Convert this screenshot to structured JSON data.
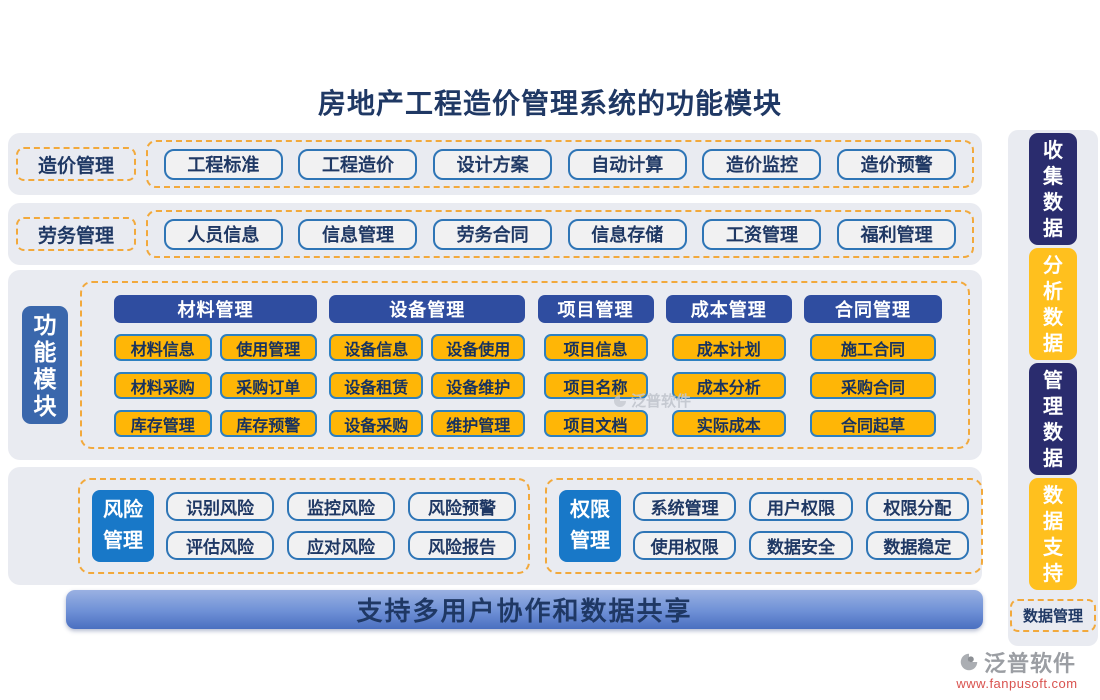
{
  "title": "房地产工程造价管理系统的功能模块",
  "rows": [
    {
      "label": "造价管理",
      "buttons": [
        "工程标准",
        "工程造价",
        "设计方案",
        "自动计算",
        "造价监控",
        "造价预警"
      ]
    },
    {
      "label": "劳务管理",
      "buttons": [
        "人员信息",
        "信息管理",
        "劳务合同",
        "信息存储",
        "工资管理",
        "福利管理"
      ]
    }
  ],
  "function_modules": {
    "label": "功能模块",
    "columns": [
      {
        "header": "材料管理",
        "layout": "two-col",
        "buttons": [
          "材料信息",
          "使用管理",
          "材料采购",
          "采购订单",
          "库存管理",
          "库存预警"
        ]
      },
      {
        "header": "设备管理",
        "layout": "two-col",
        "buttons": [
          "设备信息",
          "设备使用",
          "设备租赁",
          "设备维护",
          "设备采购",
          "维护管理"
        ]
      },
      {
        "header": "项目管理",
        "layout": "one-col",
        "buttons": [
          "项目信息",
          "项目名称",
          "项目文档"
        ]
      },
      {
        "header": "成本管理",
        "layout": "one-col",
        "buttons": [
          "成本计划",
          "成本分析",
          "实际成本"
        ]
      },
      {
        "header": "合同管理",
        "layout": "one-col",
        "buttons": [
          "施工合同",
          "采购合同",
          "合同起草"
        ]
      }
    ]
  },
  "bottom_groups": [
    {
      "label": "风险管理",
      "buttons": [
        "识别风险",
        "监控风险",
        "风险预警",
        "评估风险",
        "应对风险",
        "风险报告"
      ]
    },
    {
      "label": "权限管理",
      "buttons": [
        "系统管理",
        "用户权限",
        "权限分配",
        "使用权限",
        "数据安全",
        "数据稳定"
      ]
    }
  ],
  "banner": {
    "text": "支持多用户协作和数据共享"
  },
  "sidebar": {
    "items": [
      {
        "label": "收集数据",
        "variant": "navy"
      },
      {
        "label": "分析数据",
        "variant": "gold"
      },
      {
        "label": "管理数据",
        "variant": "navy"
      },
      {
        "label": "数据支持",
        "variant": "gold"
      }
    ],
    "footer_label": "数据管理"
  },
  "branding": {
    "logo_text": "泛普软件",
    "url": "www.fanpusoft.com",
    "center_watermark": "泛普软件"
  },
  "colors": {
    "title_text": "#1F3864",
    "column_header_blue": "#2F4DA0",
    "function_label_blue": "#3A67AC",
    "group_label_blue": "#1878C8",
    "button_gold": "#FFB606",
    "sidebar_navy": "#2A2C6E",
    "sidebar_gold": "#FFC01E",
    "dashed_orange": "#F2A93C",
    "panel_gray": "#E9EBF1",
    "pill_border_blue": "#2E75B6",
    "banner_gradient_top": "#9AB1E2",
    "banner_gradient_bottom": "#4A6FC0",
    "url_red": "#D9534F"
  }
}
